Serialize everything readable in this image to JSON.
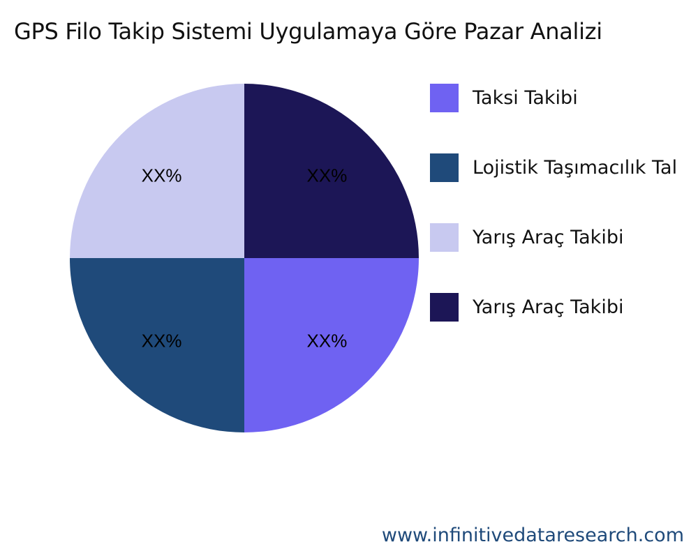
{
  "chart_data": {
    "type": "pie",
    "title": "GPS Filo Takip Sistemi Uygulamaya Göre Pazar Analizi",
    "legend_position": "right",
    "slices": [
      {
        "name": "Taksi Takibi",
        "value": 25,
        "label": "XX%",
        "color": "#6f62f2"
      },
      {
        "name": "Lojistik Taşımacılık Tal",
        "value": 25,
        "label": "XX%",
        "color": "#1f4a7a"
      },
      {
        "name": "Yarış Araç Takibi",
        "value": 25,
        "label": "XX%",
        "color": "#c8c9f0"
      },
      {
        "name": "Yarış Araç Takibi",
        "value": 25,
        "label": "XX%",
        "color": "#1c1656"
      }
    ]
  },
  "footer": "www.infinitivedataresearch.com"
}
